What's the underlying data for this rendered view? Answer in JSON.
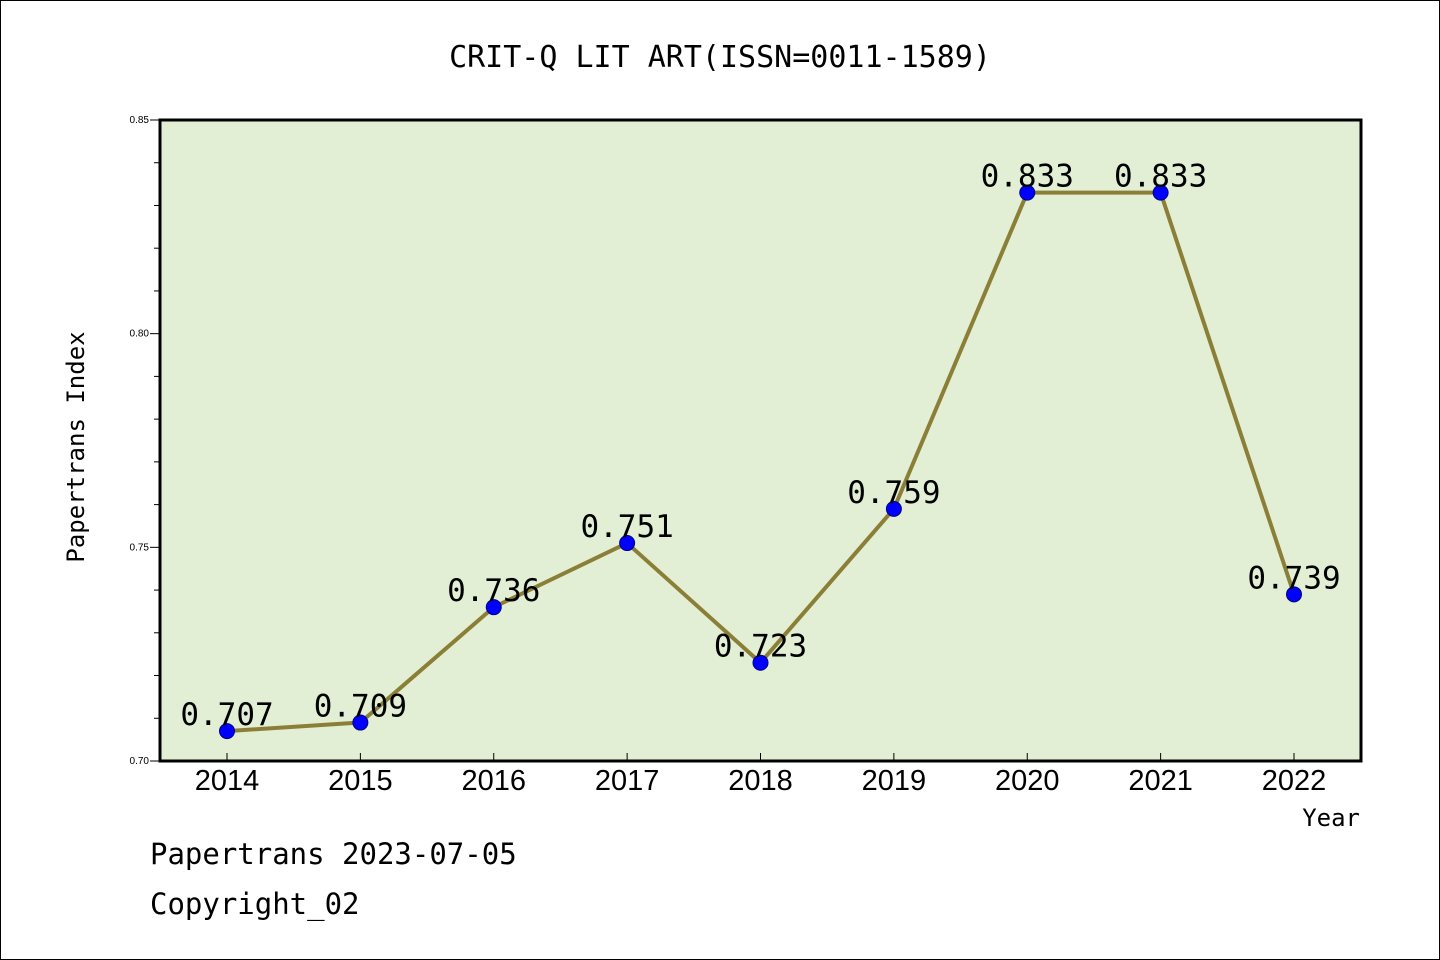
{
  "chart_data": {
    "type": "line",
    "title": "CRIT-Q LIT ART(ISSN=0011-1589)",
    "xlabel": "Year",
    "ylabel": "Papertrans Index",
    "x": [
      "2014",
      "2015",
      "2016",
      "2017",
      "2018",
      "2019",
      "2020",
      "2021",
      "2022"
    ],
    "series": [
      {
        "values": [
          0.707,
          0.709,
          0.736,
          0.751,
          0.723,
          0.759,
          0.833,
          0.833,
          0.739
        ]
      }
    ],
    "data_labels": [
      "0.707",
      "0.709",
      "0.736",
      "0.751",
      "0.723",
      "0.759",
      "0.833",
      "0.833",
      "0.739"
    ],
    "ylim": [
      0.7,
      0.85
    ],
    "y_ticks": [
      "0.70",
      "0.75",
      "0.80",
      "0.85"
    ],
    "y_tick_values": [
      0.7,
      0.75,
      0.8,
      0.85
    ],
    "y_minor_step": 0.01,
    "grid": false,
    "colors": {
      "plot_background": "#e2efd4",
      "line": "#8b7f37",
      "marker": "#0000ff"
    }
  },
  "footer": {
    "line1": "Papertrans 2023-07-05",
    "line2": "Copyright_02"
  }
}
